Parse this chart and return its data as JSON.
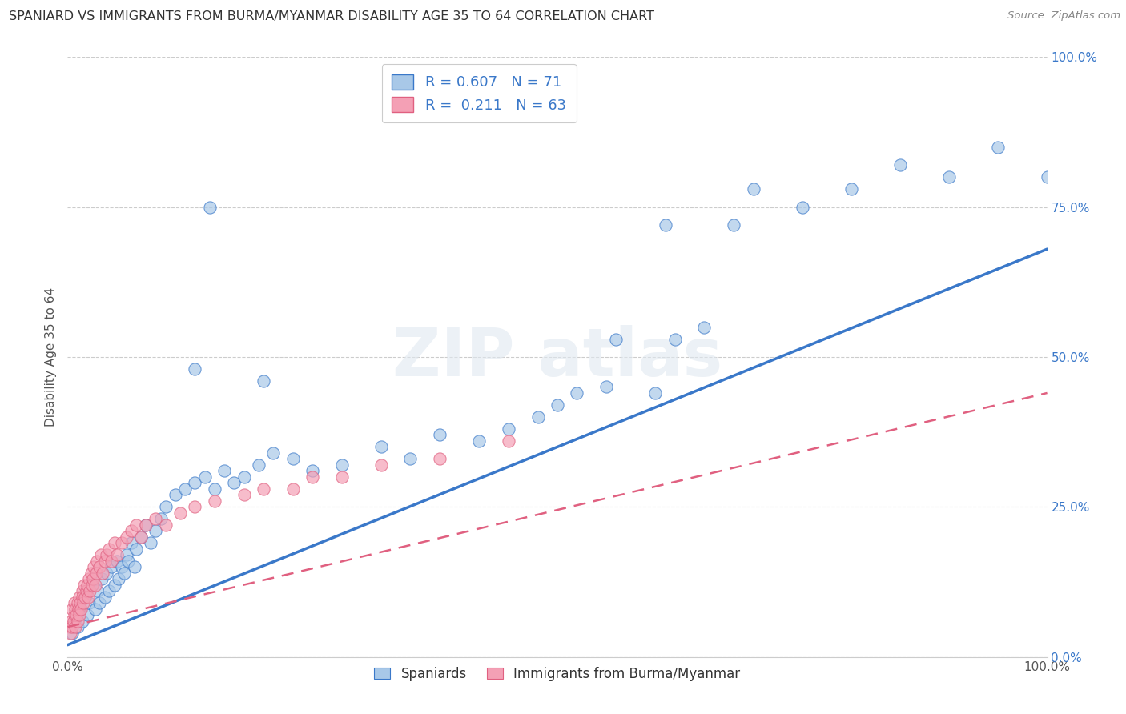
{
  "title": "SPANIARD VS IMMIGRANTS FROM BURMA/MYANMAR DISABILITY AGE 35 TO 64 CORRELATION CHART",
  "source": "Source: ZipAtlas.com",
  "ylabel": "Disability Age 35 to 64",
  "xlim": [
    0.0,
    1.0
  ],
  "ylim": [
    0.0,
    1.0
  ],
  "xtick_labels": [
    "0.0%",
    "100.0%"
  ],
  "ytick_labels": [
    "0.0%",
    "25.0%",
    "50.0%",
    "75.0%",
    "100.0%"
  ],
  "ytick_vals": [
    0.0,
    0.25,
    0.5,
    0.75,
    1.0
  ],
  "blue_color": "#A8C8E8",
  "pink_color": "#F4A0B5",
  "blue_line_color": "#3A78C9",
  "pink_line_color": "#E06080",
  "legend_label_spaniards": "Spaniards",
  "legend_label_immigrants": "Immigrants from Burma/Myanmar",
  "grid_color": "#CCCCCC",
  "background_color": "#FFFFFF",
  "title_color": "#333333",
  "axis_label_color": "#555555",
  "legend_text_color": "#3A78C9",
  "tick_color": "#3A78C9",
  "blue_line_x": [
    0.0,
    1.0
  ],
  "blue_line_y": [
    0.02,
    0.68
  ],
  "pink_line_x": [
    0.0,
    1.0
  ],
  "pink_line_y": [
    0.05,
    0.44
  ],
  "blue_scatter_x": [
    0.005,
    0.008,
    0.01,
    0.012,
    0.015,
    0.018,
    0.02,
    0.022,
    0.025,
    0.028,
    0.03,
    0.032,
    0.035,
    0.038,
    0.04,
    0.042,
    0.045,
    0.048,
    0.05,
    0.052,
    0.055,
    0.058,
    0.06,
    0.062,
    0.065,
    0.068,
    0.07,
    0.075,
    0.08,
    0.085,
    0.09,
    0.095,
    0.1,
    0.11,
    0.12,
    0.13,
    0.14,
    0.15,
    0.16,
    0.17,
    0.18,
    0.195,
    0.21,
    0.23,
    0.25,
    0.28,
    0.32,
    0.35,
    0.38,
    0.42,
    0.45,
    0.48,
    0.5,
    0.52,
    0.55,
    0.6,
    0.62,
    0.65,
    0.68,
    0.7,
    0.75,
    0.8,
    0.85,
    0.9,
    0.95,
    1.0,
    0.56,
    0.61,
    0.13,
    0.145,
    0.2
  ],
  "blue_scatter_y": [
    0.04,
    0.06,
    0.05,
    0.08,
    0.06,
    0.1,
    0.07,
    0.09,
    0.12,
    0.08,
    0.11,
    0.09,
    0.13,
    0.1,
    0.14,
    0.11,
    0.15,
    0.12,
    0.16,
    0.13,
    0.15,
    0.14,
    0.17,
    0.16,
    0.19,
    0.15,
    0.18,
    0.2,
    0.22,
    0.19,
    0.21,
    0.23,
    0.25,
    0.27,
    0.28,
    0.29,
    0.3,
    0.28,
    0.31,
    0.29,
    0.3,
    0.32,
    0.34,
    0.33,
    0.31,
    0.32,
    0.35,
    0.33,
    0.37,
    0.36,
    0.38,
    0.4,
    0.42,
    0.44,
    0.45,
    0.44,
    0.53,
    0.55,
    0.72,
    0.78,
    0.75,
    0.78,
    0.82,
    0.8,
    0.85,
    0.8,
    0.53,
    0.72,
    0.48,
    0.75,
    0.46
  ],
  "pink_scatter_x": [
    0.002,
    0.003,
    0.004,
    0.005,
    0.005,
    0.006,
    0.007,
    0.007,
    0.008,
    0.008,
    0.009,
    0.01,
    0.01,
    0.011,
    0.012,
    0.012,
    0.013,
    0.014,
    0.015,
    0.015,
    0.016,
    0.017,
    0.018,
    0.019,
    0.02,
    0.021,
    0.022,
    0.023,
    0.024,
    0.025,
    0.026,
    0.027,
    0.028,
    0.029,
    0.03,
    0.032,
    0.034,
    0.036,
    0.038,
    0.04,
    0.042,
    0.045,
    0.048,
    0.05,
    0.055,
    0.06,
    0.065,
    0.07,
    0.075,
    0.08,
    0.09,
    0.1,
    0.115,
    0.13,
    0.15,
    0.18,
    0.2,
    0.23,
    0.25,
    0.28,
    0.32,
    0.38,
    0.45
  ],
  "pink_scatter_y": [
    0.05,
    0.04,
    0.06,
    0.05,
    0.08,
    0.06,
    0.07,
    0.09,
    0.05,
    0.08,
    0.07,
    0.06,
    0.09,
    0.08,
    0.1,
    0.07,
    0.09,
    0.08,
    0.11,
    0.1,
    0.09,
    0.12,
    0.1,
    0.11,
    0.12,
    0.1,
    0.13,
    0.11,
    0.14,
    0.12,
    0.13,
    0.15,
    0.12,
    0.14,
    0.16,
    0.15,
    0.17,
    0.14,
    0.16,
    0.17,
    0.18,
    0.16,
    0.19,
    0.17,
    0.19,
    0.2,
    0.21,
    0.22,
    0.2,
    0.22,
    0.23,
    0.22,
    0.24,
    0.25,
    0.26,
    0.27,
    0.28,
    0.28,
    0.3,
    0.3,
    0.32,
    0.33,
    0.36
  ]
}
